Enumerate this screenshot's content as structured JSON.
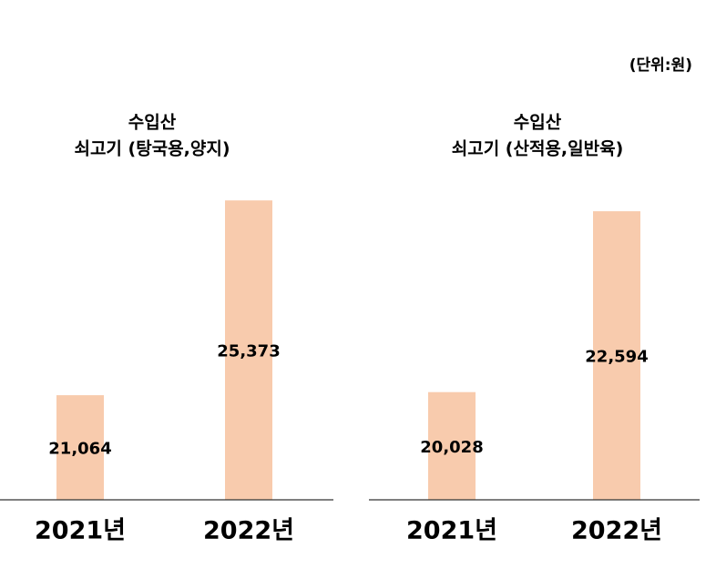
{
  "unit_note": "(단위:원)",
  "chart_data": [
    {
      "type": "bar",
      "title": "수입산",
      "subtitle": "쇠고기 (탕국용,양지)",
      "categories": [
        "2021년",
        "2022년"
      ],
      "values": [
        21064,
        25373
      ],
      "value_labels": [
        "21,064",
        "25,373"
      ],
      "color": "#f8cbad",
      "ylim": [
        18750,
        26000
      ]
    },
    {
      "type": "bar",
      "title": "수입산",
      "subtitle": "쇠고기 (산적용,일반육)",
      "categories": [
        "2021년",
        "2022년"
      ],
      "values": [
        20028,
        22594
      ],
      "value_labels": [
        "20,028",
        "22,594"
      ],
      "color": "#f8cbad",
      "ylim": [
        18500,
        23150
      ]
    }
  ]
}
